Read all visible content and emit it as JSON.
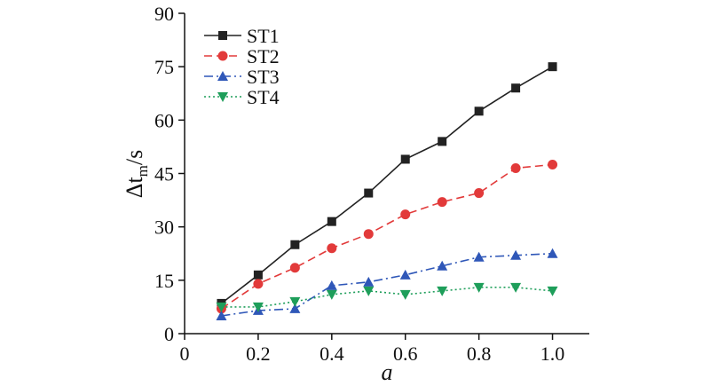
{
  "chart_data": {
    "type": "line",
    "xlabel": "a",
    "ylabel": {
      "prefix": "Δt",
      "subscript": "m",
      "suffix": "/s"
    },
    "xlim": [
      0,
      1.1
    ],
    "ylim": [
      0,
      90
    ],
    "xticks": [
      0,
      0.2,
      0.4,
      0.6,
      0.8,
      1.0
    ],
    "xtick_labels": [
      "0",
      "0.2",
      "0.4",
      "0.6",
      "0.8",
      "1.0"
    ],
    "yticks": [
      0,
      15,
      30,
      45,
      60,
      75,
      90
    ],
    "ytick_labels": [
      "0",
      "15",
      "30",
      "45",
      "60",
      "75",
      "90"
    ],
    "legend_position": "top-left",
    "x": [
      0.1,
      0.2,
      0.3,
      0.4,
      0.5,
      0.6,
      0.7,
      0.8,
      0.9,
      1.0
    ],
    "series": [
      {
        "name": "ST1",
        "color": "#222222",
        "marker": "square",
        "dash": "solid",
        "values": [
          8.5,
          16.5,
          25.0,
          31.5,
          39.5,
          49.0,
          54.0,
          62.5,
          69.0,
          75.0
        ]
      },
      {
        "name": "ST2",
        "color": "#e23a3a",
        "marker": "circle",
        "dash": "dash",
        "values": [
          7.0,
          14.0,
          18.5,
          24.0,
          28.0,
          33.5,
          37.0,
          39.5,
          46.5,
          47.5
        ]
      },
      {
        "name": "ST3",
        "color": "#2f57b8",
        "marker": "triangle-up",
        "dash": "dashdot",
        "values": [
          5.0,
          6.5,
          7.0,
          13.5,
          14.5,
          16.5,
          19.0,
          21.5,
          22.0,
          22.5
        ]
      },
      {
        "name": "ST4",
        "color": "#1e9e5a",
        "marker": "triangle-down",
        "dash": "dot",
        "values": [
          7.5,
          7.5,
          9.0,
          11.0,
          12.0,
          11.0,
          12.0,
          13.0,
          13.0,
          12.0
        ]
      }
    ]
  }
}
